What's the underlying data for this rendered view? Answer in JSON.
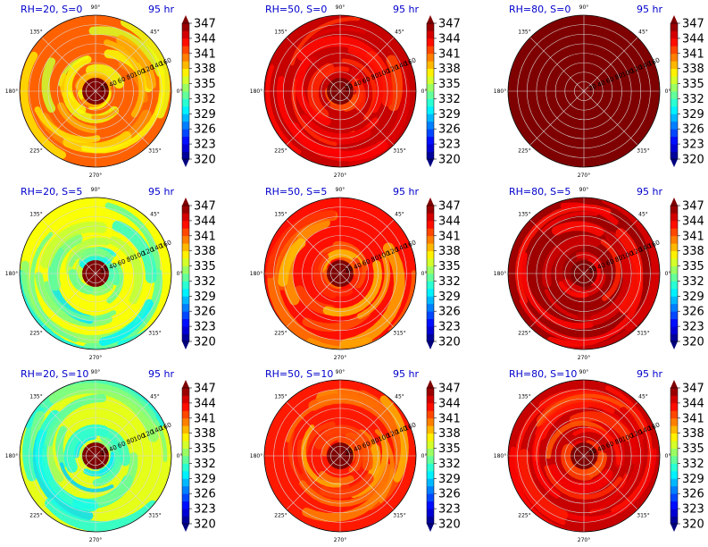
{
  "chart_data": [
    {
      "type": "heatmap",
      "title_left": "RH=20, S=0",
      "title_right": "95 hr",
      "theta_ticks": [
        "90°",
        "45°",
        "0°",
        "315°",
        "270°",
        "225°",
        "180°",
        "135°"
      ],
      "r_ticks": [
        "20",
        "40",
        "60",
        "80",
        "100",
        "120",
        "140",
        "160"
      ],
      "colorbar": {
        "ticks": [
          "347",
          "344",
          "341",
          "338",
          "335",
          "332",
          "329",
          "326",
          "323",
          "320"
        ],
        "range": [
          320,
          347
        ]
      },
      "mean_level": 0.78
    },
    {
      "type": "heatmap",
      "title_left": "RH=50, S=0",
      "title_right": "95 hr",
      "theta_ticks": [
        "90°",
        "45°",
        "0°",
        "315°",
        "270°",
        "225°",
        "180°",
        "135°"
      ],
      "r_ticks": [
        "20",
        "40",
        "60",
        "80",
        "100",
        "120",
        "140",
        "160"
      ],
      "colorbar": {
        "ticks": [
          "347",
          "344",
          "341",
          "338",
          "335",
          "332",
          "329",
          "326",
          "323",
          "320"
        ],
        "range": [
          320,
          347
        ]
      },
      "mean_level": 0.93
    },
    {
      "type": "heatmap",
      "title_left": "RH=80, S=0",
      "title_right": "95 hr",
      "theta_ticks": [
        "90°",
        "45°",
        "0°",
        "315°",
        "270°",
        "225°",
        "180°",
        "135°"
      ],
      "r_ticks": [
        "20",
        "40",
        "60",
        "80",
        "100",
        "120",
        "140",
        "160"
      ],
      "colorbar": {
        "ticks": [
          "347",
          "344",
          "341",
          "338",
          "335",
          "332",
          "329",
          "326",
          "323",
          "320"
        ],
        "range": [
          320,
          347
        ]
      },
      "mean_level": 1.0
    },
    {
      "type": "heatmap",
      "title_left": "RH=20, S=5",
      "title_right": "95 hr",
      "theta_ticks": [
        "90°",
        "45°",
        "0°",
        "315°",
        "270°",
        "225°",
        "180°",
        "135°"
      ],
      "r_ticks": [
        "20",
        "40",
        "60",
        "80",
        "100",
        "120",
        "140",
        "160"
      ],
      "colorbar": {
        "ticks": [
          "347",
          "344",
          "341",
          "338",
          "335",
          "332",
          "329",
          "326",
          "323",
          "320"
        ],
        "range": [
          320,
          347
        ]
      },
      "mean_level": 0.62
    },
    {
      "type": "heatmap",
      "title_left": "RH=50, S=5",
      "title_right": "95 hr",
      "theta_ticks": [
        "90°",
        "45°",
        "0°",
        "315°",
        "270°",
        "225°",
        "180°",
        "135°"
      ],
      "r_ticks": [
        "20",
        "40",
        "60",
        "80",
        "100",
        "120",
        "140",
        "160"
      ],
      "colorbar": {
        "ticks": [
          "347",
          "344",
          "341",
          "338",
          "335",
          "332",
          "329",
          "326",
          "323",
          "320"
        ],
        "range": [
          320,
          347
        ]
      },
      "mean_level": 0.86
    },
    {
      "type": "heatmap",
      "title_left": "RH=80, S=5",
      "title_right": "95 hr",
      "theta_ticks": [
        "90°",
        "45°",
        "0°",
        "315°",
        "270°",
        "225°",
        "180°",
        "135°"
      ],
      "r_ticks": [
        "20",
        "40",
        "60",
        "80",
        "100",
        "120",
        "140",
        "160"
      ],
      "colorbar": {
        "ticks": [
          "347",
          "344",
          "341",
          "338",
          "335",
          "332",
          "329",
          "326",
          "323",
          "320"
        ],
        "range": [
          320,
          347
        ]
      },
      "mean_level": 0.97
    },
    {
      "type": "heatmap",
      "title_left": "RH=20, S=10",
      "title_right": "95 hr",
      "theta_ticks": [
        "90°",
        "45°",
        "0°",
        "315°",
        "270°",
        "225°",
        "180°",
        "135°"
      ],
      "r_ticks": [
        "20",
        "40",
        "60",
        "80",
        "100",
        "120",
        "140",
        "160"
      ],
      "colorbar": {
        "ticks": [
          "347",
          "344",
          "341",
          "338",
          "335",
          "332",
          "329",
          "326",
          "323",
          "320"
        ],
        "range": [
          320,
          347
        ]
      },
      "mean_level": 0.6
    },
    {
      "type": "heatmap",
      "title_left": "RH=50, S=10",
      "title_right": "95 hr",
      "theta_ticks": [
        "90°",
        "45°",
        "0°",
        "315°",
        "270°",
        "225°",
        "180°",
        "135°"
      ],
      "r_ticks": [
        "20",
        "40",
        "60",
        "80",
        "100",
        "120",
        "140",
        "160"
      ],
      "colorbar": {
        "ticks": [
          "347",
          "344",
          "341",
          "338",
          "335",
          "332",
          "329",
          "326",
          "323",
          "320"
        ],
        "range": [
          320,
          347
        ]
      },
      "mean_level": 0.85
    },
    {
      "type": "heatmap",
      "title_left": "RH=80, S=10",
      "title_right": "95 hr",
      "theta_ticks": [
        "90°",
        "45°",
        "0°",
        "315°",
        "270°",
        "225°",
        "180°",
        "135°"
      ],
      "r_ticks": [
        "20",
        "40",
        "60",
        "80",
        "100",
        "120",
        "140",
        "160"
      ],
      "colorbar": {
        "ticks": [
          "347",
          "344",
          "341",
          "338",
          "335",
          "332",
          "329",
          "326",
          "323",
          "320"
        ],
        "range": [
          320,
          347
        ]
      },
      "mean_level": 0.93
    }
  ],
  "colors": {
    "title": "#0000cc",
    "grid": "#d8d8d8"
  },
  "colormap": [
    "#00007f",
    "#0000ff",
    "#007fff",
    "#00ffff",
    "#7fff7f",
    "#ffff00",
    "#ff7f00",
    "#ff0000",
    "#7f0000"
  ]
}
